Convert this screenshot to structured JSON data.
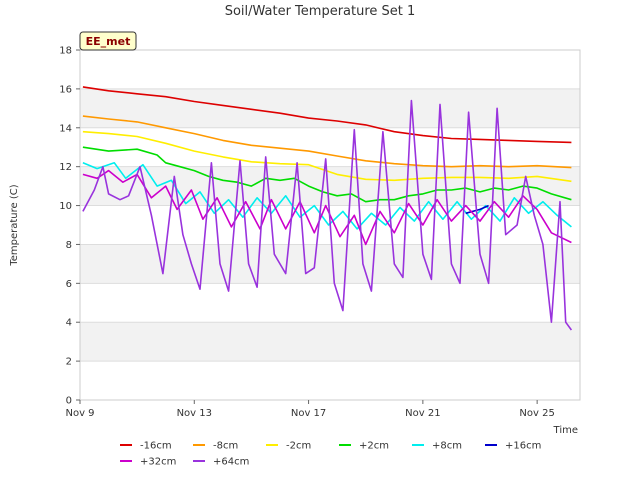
{
  "chart_data": {
    "type": "line",
    "title": "Soil/Water Temperature Set 1",
    "xlabel": "Time",
    "ylabel": "Temperature (C)",
    "badge": "EE_met",
    "xlim": [
      9,
      26.5
    ],
    "ylim": [
      0,
      18
    ],
    "x_ticks": [
      {
        "value": 9,
        "label": "Nov 9"
      },
      {
        "value": 13,
        "label": "Nov 13"
      },
      {
        "value": 17,
        "label": "Nov 17"
      },
      {
        "value": 21,
        "label": "Nov 21"
      },
      {
        "value": 25,
        "label": "Nov 25"
      }
    ],
    "y_ticks": [
      0,
      2,
      4,
      6,
      8,
      10,
      12,
      14,
      16,
      18
    ],
    "grid": "alternating horizontal bands",
    "legend_position": "bottom",
    "series": [
      {
        "name": "-16cm",
        "color": "#dd0000",
        "x": [
          9.1,
          10,
          11,
          12,
          13,
          14,
          15,
          16,
          17,
          18,
          19,
          20,
          21,
          22,
          23,
          24,
          25,
          26.2
        ],
        "y": [
          16.1,
          15.9,
          15.75,
          15.6,
          15.35,
          15.15,
          14.95,
          14.75,
          14.5,
          14.35,
          14.15,
          13.8,
          13.6,
          13.45,
          13.4,
          13.35,
          13.3,
          13.25
        ]
      },
      {
        "name": "-8cm",
        "color": "#ff9900",
        "x": [
          9.1,
          10,
          11,
          12,
          13,
          14,
          15,
          16,
          17,
          18,
          19,
          20,
          21,
          22,
          23,
          24,
          25,
          26.2
        ],
        "y": [
          14.6,
          14.45,
          14.3,
          14.0,
          13.7,
          13.35,
          13.1,
          12.95,
          12.8,
          12.55,
          12.3,
          12.15,
          12.05,
          12.0,
          12.05,
          12.0,
          12.05,
          11.95
        ]
      },
      {
        "name": "-2cm",
        "color": "#ffee00",
        "x": [
          9.1,
          10,
          11,
          12,
          13,
          14,
          15,
          16,
          17,
          18,
          19,
          20,
          21,
          22,
          23,
          24,
          25,
          26.2
        ],
        "y": [
          13.8,
          13.7,
          13.55,
          13.2,
          12.8,
          12.5,
          12.25,
          12.15,
          12.1,
          11.6,
          11.35,
          11.3,
          11.4,
          11.45,
          11.45,
          11.4,
          11.5,
          11.25
        ]
      },
      {
        "name": "+2cm",
        "color": "#00dd00",
        "x": [
          9.1,
          10,
          11,
          11.7,
          12,
          12.5,
          13,
          13.5,
          14,
          14.5,
          15,
          15.5,
          16,
          16.5,
          17,
          17.5,
          18,
          18.5,
          19,
          19.5,
          20,
          20.5,
          21,
          21.5,
          22,
          22.5,
          23,
          23.5,
          24,
          24.5,
          25,
          25.5,
          26.2
        ],
        "y": [
          13.0,
          12.8,
          12.9,
          12.6,
          12.2,
          12.0,
          11.8,
          11.5,
          11.3,
          11.2,
          11.0,
          11.4,
          11.3,
          11.4,
          11.0,
          10.7,
          10.5,
          10.6,
          10.2,
          10.3,
          10.3,
          10.5,
          10.6,
          10.8,
          10.8,
          10.9,
          10.7,
          10.9,
          10.8,
          11.0,
          10.9,
          10.6,
          10.3
        ]
      },
      {
        "name": "+8cm",
        "color": "#00eeee",
        "x": [
          9.1,
          9.6,
          10.2,
          10.6,
          11.2,
          11.7,
          12.2,
          12.7,
          13.2,
          13.7,
          14.2,
          14.7,
          15.2,
          15.7,
          16.2,
          16.7,
          17.2,
          17.7,
          18.2,
          18.7,
          19.2,
          19.7,
          20.2,
          20.7,
          21.2,
          21.7,
          22.2,
          22.7,
          23.2,
          23.7,
          24.2,
          24.7,
          25.2,
          25.7,
          26.2
        ],
        "y": [
          12.2,
          11.9,
          12.2,
          11.4,
          12.1,
          11.0,
          11.3,
          10.1,
          10.7,
          9.6,
          10.3,
          9.4,
          10.4,
          9.6,
          10.5,
          9.4,
          10.0,
          9.0,
          9.7,
          8.8,
          9.6,
          9.0,
          9.9,
          9.2,
          10.2,
          9.3,
          10.2,
          9.3,
          10.0,
          9.2,
          10.4,
          9.6,
          10.2,
          9.5,
          8.9
        ]
      },
      {
        "name": "+16cm",
        "color": "#0000cc",
        "x": [
          22.5,
          23.0,
          23.3
        ],
        "y": [
          9.6,
          9.8,
          10.0
        ]
      },
      {
        "name": "+32cm",
        "color": "#cc00cc",
        "x": [
          9.1,
          9.6,
          10.0,
          10.5,
          11.0,
          11.5,
          12.0,
          12.4,
          12.9,
          13.3,
          13.8,
          14.3,
          14.8,
          15.3,
          15.7,
          16.2,
          16.7,
          17.2,
          17.6,
          18.1,
          18.6,
          19.0,
          19.5,
          20.0,
          20.5,
          21.0,
          21.5,
          22.0,
          22.5,
          23.0,
          23.5,
          24.0,
          24.5,
          25.0,
          25.5,
          26.2
        ],
        "y": [
          11.6,
          11.4,
          11.8,
          11.2,
          11.6,
          10.4,
          11.0,
          9.8,
          10.8,
          9.3,
          10.4,
          8.9,
          10.2,
          8.8,
          10.3,
          8.8,
          10.2,
          8.6,
          10.0,
          8.4,
          9.5,
          8.0,
          9.7,
          8.6,
          10.1,
          9.0,
          10.3,
          9.2,
          10.0,
          9.2,
          10.2,
          9.4,
          10.5,
          9.8,
          8.6,
          8.1
        ]
      },
      {
        "name": "+64cm",
        "color": "#9933dd",
        "x": [
          9.1,
          9.5,
          9.8,
          10.0,
          10.4,
          10.7,
          11.1,
          11.5,
          11.9,
          12.3,
          12.6,
          12.9,
          13.2,
          13.6,
          13.9,
          14.2,
          14.6,
          14.9,
          15.2,
          15.5,
          15.8,
          16.2,
          16.6,
          16.9,
          17.2,
          17.6,
          17.9,
          18.2,
          18.6,
          18.9,
          19.2,
          19.6,
          20.0,
          20.3,
          20.6,
          21.0,
          21.3,
          21.6,
          22.0,
          22.3,
          22.6,
          23.0,
          23.3,
          23.6,
          23.9,
          24.3,
          24.6,
          24.9,
          25.2,
          25.5,
          25.8,
          26.0,
          26.2
        ],
        "y": [
          9.7,
          10.8,
          12.0,
          10.6,
          10.3,
          10.5,
          12.0,
          9.5,
          6.5,
          11.5,
          8.5,
          7.0,
          5.7,
          12.2,
          7.0,
          5.6,
          12.3,
          7.0,
          5.8,
          12.5,
          7.5,
          6.5,
          12.2,
          6.5,
          6.8,
          12.4,
          6.0,
          4.6,
          13.9,
          7.0,
          5.6,
          13.8,
          7.0,
          6.3,
          15.4,
          7.5,
          6.2,
          15.2,
          7.0,
          6.0,
          14.8,
          7.5,
          6.0,
          15.0,
          8.5,
          9.0,
          11.5,
          9.5,
          8.0,
          4.0,
          10.2,
          4.0,
          3.6
        ]
      }
    ]
  }
}
